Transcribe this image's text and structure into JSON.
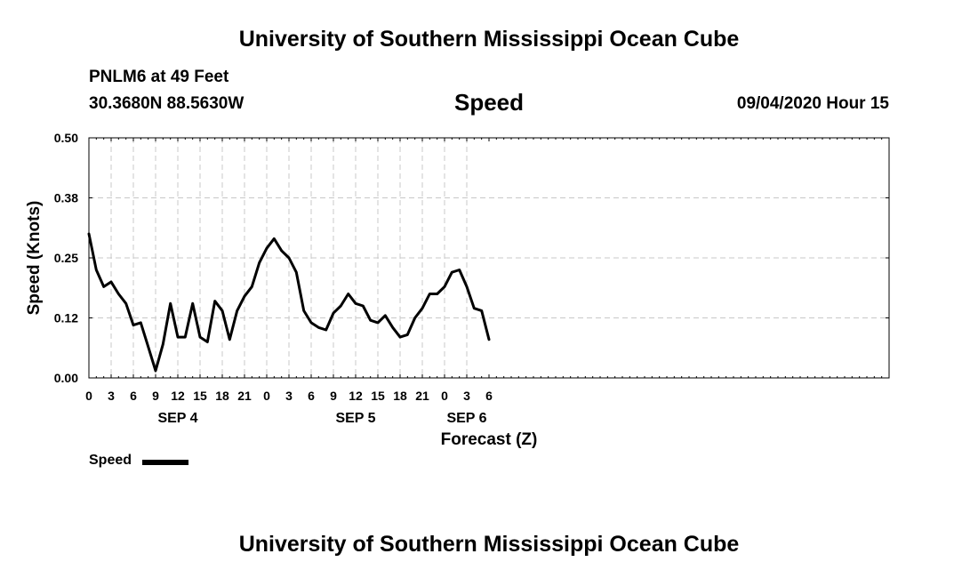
{
  "header": {
    "title": "University of Southern Mississippi Ocean Cube",
    "station": "PNLM6 at 49 Feet",
    "coordinates": "30.3680N 88.5630W",
    "chart_title": "Speed",
    "datetime": "09/04/2020 Hour 15"
  },
  "footer": {
    "title": "University of Southern Mississippi Ocean Cube"
  },
  "legend": {
    "label": "Speed"
  },
  "colors": {
    "line": "#000000",
    "grid": "#c8c8c8",
    "background": "#ffffff"
  },
  "chart_data": {
    "type": "line",
    "title": "Speed",
    "xlabel": "Forecast (Z)",
    "ylabel": "Speed (Knots)",
    "xlim": [
      0,
      54
    ],
    "ylim": [
      0.0,
      0.5
    ],
    "grid": true,
    "y_ticks": [
      "0.00",
      "0.12",
      "0.25",
      "0.38",
      "0.50"
    ],
    "y_tick_values": [
      0.0,
      0.125,
      0.25,
      0.375,
      0.5
    ],
    "x_ticks": [
      "0",
      "3",
      "6",
      "9",
      "12",
      "15",
      "18",
      "21",
      "0",
      "3",
      "6",
      "9",
      "12",
      "15",
      "18",
      "21",
      "0",
      "3",
      "6"
    ],
    "x_tick_values": [
      0,
      1.5,
      3,
      4.5,
      6,
      7.5,
      9,
      10.5,
      12,
      13.5,
      15,
      16.5,
      18,
      19.5,
      21,
      22.5,
      24,
      25.5,
      27
    ],
    "day_labels": [
      {
        "label": "SEP 4",
        "x": 6
      },
      {
        "label": "SEP 5",
        "x": 18
      },
      {
        "label": "SEP 6",
        "x": 25.5
      }
    ],
    "series": [
      {
        "name": "Speed",
        "x": [
          0,
          0.5,
          1,
          1.5,
          2,
          2.5,
          3,
          3.5,
          4,
          4.5,
          5,
          5.5,
          6,
          6.5,
          7,
          7.5,
          8,
          8.5,
          9,
          9.5,
          10,
          10.5,
          11,
          11.5,
          12,
          12.5,
          13,
          13.5,
          14,
          14.5,
          15,
          15.5,
          16,
          16.5,
          17,
          17.5,
          18,
          18.5,
          19,
          19.5,
          20,
          20.5,
          21,
          21.5,
          22,
          22.5,
          23,
          23.5,
          24,
          24.5,
          25,
          25.5,
          26,
          26.5,
          27
        ],
        "values": [
          0.3,
          0.225,
          0.19,
          0.2,
          0.175,
          0.155,
          0.11,
          0.115,
          0.065,
          0.015,
          0.07,
          0.155,
          0.085,
          0.085,
          0.155,
          0.085,
          0.075,
          0.16,
          0.14,
          0.08,
          0.14,
          0.17,
          0.19,
          0.24,
          0.27,
          0.29,
          0.265,
          0.25,
          0.22,
          0.14,
          0.115,
          0.105,
          0.1,
          0.135,
          0.15,
          0.175,
          0.155,
          0.15,
          0.12,
          0.115,
          0.13,
          0.105,
          0.085,
          0.09,
          0.125,
          0.145,
          0.175,
          0.175,
          0.19,
          0.22,
          0.225,
          0.19,
          0.145,
          0.14,
          0.08
        ]
      }
    ]
  }
}
